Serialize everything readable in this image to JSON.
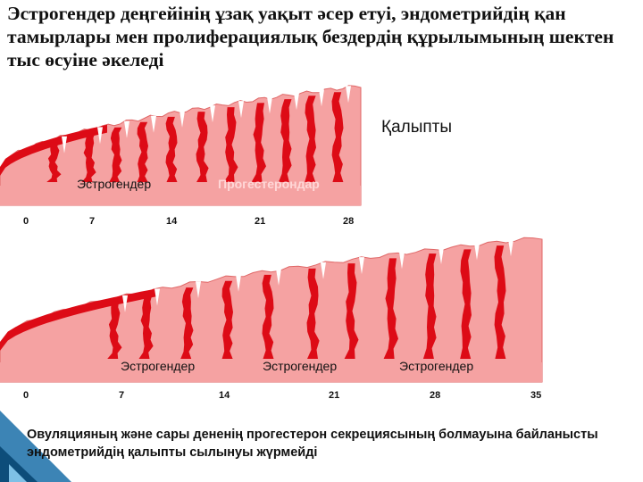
{
  "slide": {
    "title": "Эстрогендер деңгейінің ұзақ уақыт әсер етуі, эндометрийдің қан тамырлары мен пролиферациялық бездердің құрылымының шектен тыс өсуіне әкеледі",
    "normal_label": "Қалыпты",
    "note": "Овуляцияның және сары дененің прогестерон секрециясының болмауына байланысты эндометрийдің қалыпты сылынуы жүрмейді"
  },
  "diagram_top": {
    "hormones": [
      "Эстрогендер",
      "Прогестерондар"
    ],
    "days": [
      "0",
      "7",
      "14",
      "21",
      "28"
    ]
  },
  "diagram_bottom": {
    "hormones": [
      "Эстрогендер",
      "Эстрогендер",
      "Эстрогендер"
    ],
    "days": [
      "0",
      "7",
      "14",
      "21",
      "28",
      "35"
    ]
  },
  "colors": {
    "tissue": "#f5a2a2",
    "tissue_edge": "#e06767",
    "blood": "#dd0b16",
    "corner": "#1a6fa8"
  }
}
